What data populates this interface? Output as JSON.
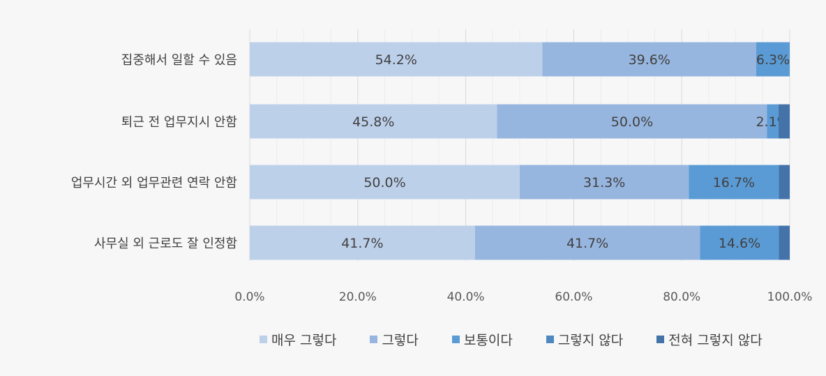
{
  "chart_data": {
    "type": "bar",
    "orientation": "horizontal",
    "stacked": true,
    "categories": [
      "집중해서 일할 수 있음",
      "퇴근 전 업무지시 안함",
      "업무시간 외 업무관련 연락 안함",
      "사무실 외 근로도 잘 인정함"
    ],
    "series": [
      {
        "name": "매우 그렇다",
        "color": "#bdd0ea",
        "values": [
          54.2,
          45.8,
          50.0,
          41.7
        ],
        "labels": [
          "54.2%",
          "45.8%",
          "50.0%",
          "41.7%"
        ]
      },
      {
        "name": "그렇다",
        "color": "#97b6df",
        "values": [
          39.6,
          50.0,
          31.3,
          41.7
        ],
        "labels": [
          "39.6%",
          "50.0%",
          "31.3%",
          "41.7%"
        ]
      },
      {
        "name": "보통이다",
        "color": "#5b9bd5",
        "values": [
          6.3,
          2.1,
          16.7,
          14.6
        ],
        "labels": [
          "6.3%",
          "2.1%",
          "16.7%",
          "14.6%"
        ]
      },
      {
        "name": "그렇지 않다",
        "color": "#4f88c0",
        "values": [
          0.0,
          0.0,
          0.0,
          0.0
        ],
        "labels": [
          "",
          "",
          "",
          ""
        ]
      },
      {
        "name": "전혀 그렇지 않다",
        "color": "#4373a8",
        "values": [
          0.0,
          2.1,
          2.0,
          2.0
        ],
        "labels": [
          "",
          "",
          "",
          ""
        ]
      }
    ],
    "xlim": [
      0,
      100
    ],
    "xticks": [
      0,
      20,
      40,
      60,
      80,
      100
    ],
    "xtick_labels": [
      "0.0%",
      "20.0%",
      "40.0%",
      "60.0%",
      "80.0%",
      "100.0%"
    ],
    "grid": true,
    "legend_position": "bottom",
    "title": "",
    "xlabel": "",
    "ylabel": ""
  }
}
